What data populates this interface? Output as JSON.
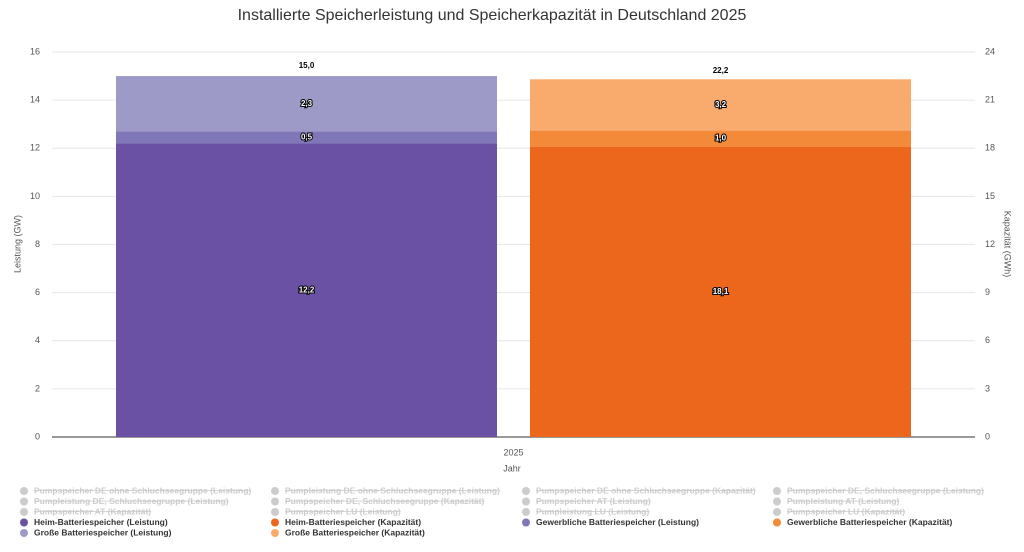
{
  "chart_data": {
    "type": "stacked-bar",
    "title": "Installierte Speicherleistung und Speicherkapazität in Deutschland 2025",
    "categories": [
      "2025"
    ],
    "x_label": "Jahr",
    "y_label": "Leistung (GW)",
    "y2_label": "Kapazität (GWh)",
    "ylim": [
      0,
      16
    ],
    "yticks": [
      0,
      2,
      4,
      6,
      8,
      10,
      12,
      14,
      16
    ],
    "y2lim": [
      0,
      24
    ],
    "y2ticks": [
      0,
      3,
      6,
      9,
      12,
      15,
      18,
      21,
      24
    ],
    "grid": true,
    "series": [
      {
        "name": "Heim-Batteriespeicher (Leistung)",
        "color": "#6a51a3",
        "axis": "y",
        "values": [
          12.2
        ],
        "value_labels": [
          "12,2"
        ]
      },
      {
        "name": "Heim-Batteriespeicher (Kapazität)",
        "color": "#ec671c",
        "axis": "y2",
        "values": [
          18.1
        ],
        "value_labels": [
          "18,1"
        ]
      },
      {
        "name": "Gewerbliche Batteriespeicher (Leistung)",
        "color": "#8077b8",
        "axis": "y",
        "values": [
          0.5
        ],
        "value_labels": [
          "0,5"
        ]
      },
      {
        "name": "Gewerbliche Batteriespeicher (Kapazität)",
        "color": "#f28a3a",
        "axis": "y2",
        "values": [
          1.0
        ],
        "value_labels": [
          "1,0"
        ]
      },
      {
        "name": "Große Batteriespeicher (Leistung)",
        "color": "#9e9ac8",
        "axis": "y",
        "values": [
          2.3
        ],
        "value_labels": [
          "2,3"
        ]
      },
      {
        "name": "Große Batteriespeicher (Kapazität)",
        "color": "#f9ab6e",
        "axis": "y2",
        "values": [
          3.2
        ],
        "value_labels": [
          "3,2"
        ]
      }
    ],
    "stack_totals": {
      "values": [
        15.0,
        22.2
      ],
      "value_labels": [
        "15,0",
        "22,2"
      ]
    },
    "hidden_series": [
      "Pumpspeicher DE ohne Schluchseegruppe (Leistung)",
      "Pumpleistung DE ohne Schluchseegruppe (Leistung)",
      "Pumpspeicher DE ohne Schluchseegruppe (Kapazität)",
      "Pumpspeicher DE, Schluchseegruppe (Leistung)",
      "Pumpleistung DE, Schluchseegruppe (Leistung)",
      "Pumpspeicher DE, Schluchseegruppe (Kapazität)",
      "Pumpspeicher AT (Leistung)",
      "Pumpleistung AT (Leistung)",
      "Pumpspeicher AT (Kapazität)",
      "Pumpspeicher LU (Leistung)",
      "Pumpleistung LU (Leistung)",
      "Pumpspeicher LU (Kapazität)"
    ]
  }
}
